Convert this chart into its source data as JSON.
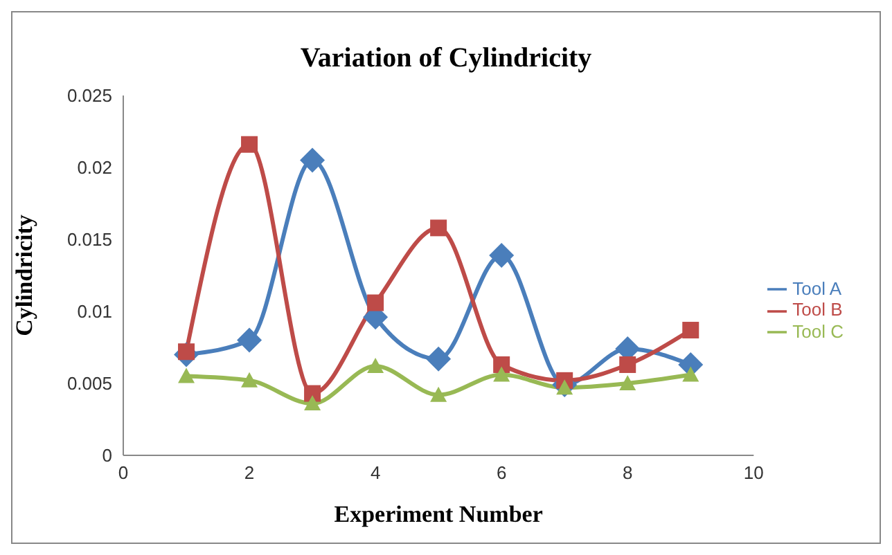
{
  "chart_data": {
    "type": "line",
    "title": "Variation of Cylindricity",
    "xlabel": "Experiment Number",
    "ylabel": "Cylindricity",
    "x": [
      1,
      2,
      3,
      4,
      5,
      6,
      7,
      8,
      9
    ],
    "series": [
      {
        "name": "Tool A",
        "color": "#4a7ebb",
        "marker": "diamond",
        "values": [
          0.007,
          0.008,
          0.0205,
          0.0096,
          0.0067,
          0.0139,
          0.0049,
          0.0074,
          0.0063
        ]
      },
      {
        "name": "Tool B",
        "color": "#be4b48",
        "marker": "square",
        "values": [
          0.0072,
          0.0216,
          0.0043,
          0.0106,
          0.0158,
          0.0063,
          0.0052,
          0.0063,
          0.0087
        ]
      },
      {
        "name": "Tool C",
        "color": "#98b954",
        "marker": "triangle",
        "values": [
          0.0055,
          0.0052,
          0.0036,
          0.0062,
          0.0042,
          0.0056,
          0.0047,
          0.005,
          0.0056
        ]
      }
    ],
    "xlim": [
      0,
      10
    ],
    "xticks": [
      0,
      2,
      4,
      6,
      8,
      10
    ],
    "ylim": [
      0,
      0.025
    ],
    "yticks": [
      0,
      0.005,
      0.01,
      0.015,
      0.02,
      0.025
    ],
    "grid": false,
    "legend": "right",
    "line_style": "solid"
  }
}
